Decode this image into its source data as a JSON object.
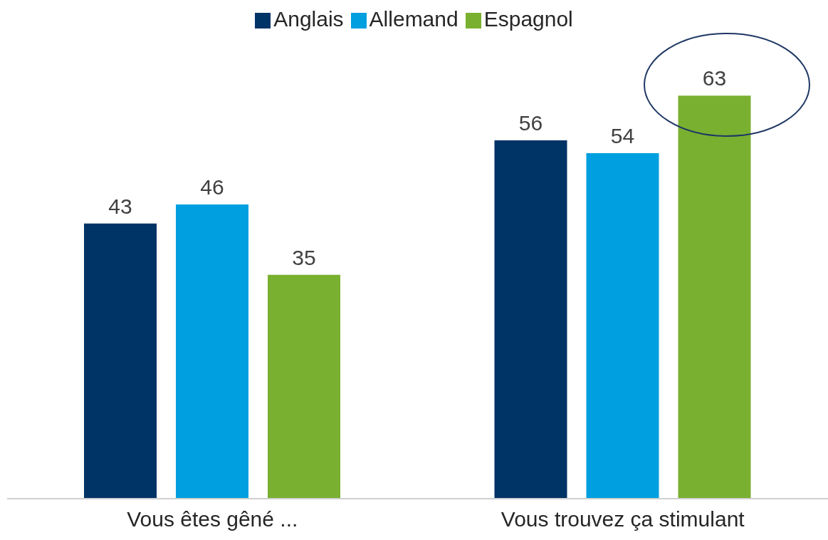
{
  "chart_data": {
    "type": "bar",
    "categories": [
      "Vous êtes gêné ...",
      "Vous trouvez ça stimulant"
    ],
    "series": [
      {
        "name": "Anglais",
        "color": "#003366",
        "values": [
          43,
          56
        ]
      },
      {
        "name": "Allemand",
        "color": "#009fdf",
        "values": [
          46,
          54
        ]
      },
      {
        "name": "Espagnol",
        "color": "#7ab030",
        "values": [
          35,
          63
        ]
      }
    ],
    "data_labels": true,
    "legend": "top",
    "grid": false
  }
}
